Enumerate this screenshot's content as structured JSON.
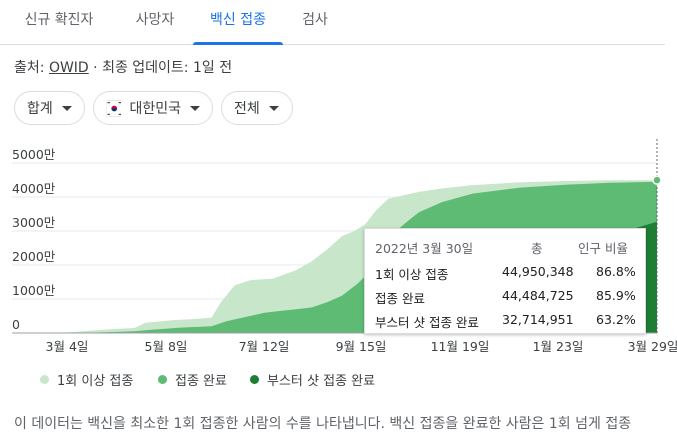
{
  "tabs": [
    {
      "label": "신규 확진자",
      "active": false
    },
    {
      "label": "사망자",
      "active": false
    },
    {
      "label": "백신 접종",
      "active": true
    },
    {
      "label": "검사",
      "active": false
    }
  ],
  "source": {
    "prefix": "출처: ",
    "link": "OWID",
    "update": " · 최종 업데이트: 1일 전"
  },
  "filters": {
    "aggregate": "합계",
    "country": "대한민국",
    "population": "전체"
  },
  "tooltip": {
    "date": "2022년 3월 30일",
    "col_total": "총",
    "col_ratio": "인구 비율",
    "rows": [
      {
        "label": "1회 이상 접종",
        "total": "44,950,348",
        "ratio": "86.8%"
      },
      {
        "label": "접종 완료",
        "total": "44,484,725",
        "ratio": "85.9%"
      },
      {
        "label": "부스터 샷 접종 완료",
        "total": "32,714,951",
        "ratio": "63.2%"
      }
    ]
  },
  "legend": [
    {
      "label": "1회 이상 접종",
      "color": "#c8e6c9"
    },
    {
      "label": "접종 완료",
      "color": "#5dbb74"
    },
    {
      "label": "부스터 샷 접종 완료",
      "color": "#1e7e34"
    }
  ],
  "description": "이 데이터는 백신을 최소한 1회 접종한 사람의 수를 나타냅니다. 백신 접종을 완료한 사람은 1회 넘게 접종",
  "colors": {
    "accent": "#1a73e8",
    "first_dose": "#c8e6c9",
    "fully": "#5dbb74",
    "booster": "#1e7e34"
  },
  "chart_data": {
    "type": "area",
    "yticks": [
      "5000만",
      "4000만",
      "3000만",
      "2000만",
      "1000만",
      "0"
    ],
    "ylim": [
      0,
      50000000
    ],
    "xticks": [
      "3월 4일",
      "5월 8일",
      "7월 12일",
      "9월 15일",
      "11월 19일",
      "1월 23일",
      "3월 29일"
    ],
    "x_range_days": 390,
    "series": [
      {
        "name": "1회 이상 접종",
        "x": [
          0,
          10,
          30,
          50,
          57,
          75,
          85,
          100,
          106,
          115,
          125,
          130,
          140,
          155,
          165,
          175,
          185,
          193,
          200,
          207,
          215,
          225,
          235,
          250,
          270,
          300,
          330,
          360,
          390
        ],
        "values": [
          0,
          300000,
          1000000,
          1500000,
          3000000,
          3800000,
          4000000,
          4500000,
          9000000,
          14000000,
          15500000,
          15700000,
          16000000,
          18500000,
          21000000,
          24500000,
          28500000,
          30000000,
          32000000,
          36000000,
          39500000,
          40500000,
          41500000,
          42500000,
          43500000,
          44300000,
          44700000,
          44900000,
          44950348
        ]
      },
      {
        "name": "접종 완료",
        "x": [
          0,
          10,
          30,
          50,
          60,
          80,
          100,
          110,
          125,
          135,
          145,
          155,
          165,
          175,
          185,
          195,
          205,
          215,
          220,
          228,
          235,
          250,
          270,
          300,
          330,
          360,
          390
        ],
        "values": [
          0,
          0,
          200000,
          500000,
          900000,
          1600000,
          2000000,
          3500000,
          5000000,
          6000000,
          6500000,
          7000000,
          7500000,
          9000000,
          11000000,
          14500000,
          19000000,
          24000000,
          30000000,
          33000000,
          35500000,
          38500000,
          41000000,
          42700000,
          43600000,
          44200000,
          44484725
        ]
      },
      {
        "name": "부스터 샷 접종 완료",
        "x": [
          0,
          228,
          240,
          255,
          270,
          285,
          300,
          315,
          330,
          345,
          360,
          375,
          390
        ],
        "values": [
          0,
          0,
          100000,
          600000,
          1600000,
          3200000,
          6000000,
          11000000,
          17000000,
          22500000,
          27500000,
          30700000,
          32714951
        ]
      }
    ]
  }
}
